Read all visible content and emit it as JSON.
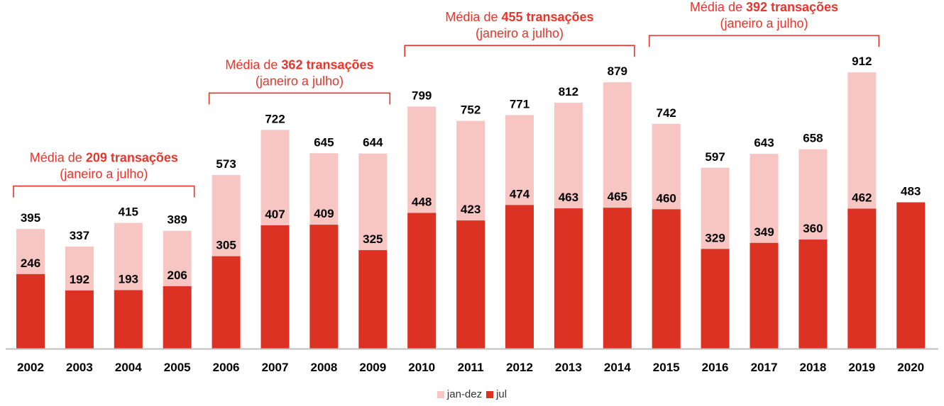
{
  "colors": {
    "jan_dez": "#f7c5c2",
    "jul": "#dc3224",
    "accent": "#e8352b",
    "axis": "#bfbfbf"
  },
  "chart_data": {
    "type": "bar",
    "stacked": "overlay",
    "categories": [
      "2002",
      "2003",
      "2004",
      "2005",
      "2006",
      "2007",
      "2008",
      "2009",
      "2010",
      "2011",
      "2012",
      "2013",
      "2014",
      "2015",
      "2016",
      "2017",
      "2018",
      "2019",
      "2020"
    ],
    "series": [
      {
        "name": "jan-dez",
        "values": [
          395,
          337,
          415,
          389,
          573,
          722,
          645,
          644,
          799,
          752,
          771,
          812,
          879,
          742,
          597,
          643,
          658,
          912,
          null
        ]
      },
      {
        "name": "jul",
        "values": [
          246,
          192,
          193,
          206,
          305,
          407,
          409,
          325,
          448,
          423,
          474,
          463,
          465,
          460,
          329,
          349,
          360,
          462,
          483
        ]
      }
    ],
    "ylim": [
      0,
      960
    ],
    "grid": false,
    "legend": "bottom-center",
    "annotations": [
      {
        "prefix": "Média de ",
        "bold": "209 transações",
        "sub": "(janeiro a julho)",
        "from": "2002",
        "to": "2005"
      },
      {
        "prefix": "Média de ",
        "bold": "362 transações",
        "sub": "(janeiro a julho)",
        "from": "2006",
        "to": "2009"
      },
      {
        "prefix": "Média de ",
        "bold": "455 transações",
        "sub": "(janeiro a julho)",
        "from": "2010",
        "to": "2014"
      },
      {
        "prefix": "Média de ",
        "bold": "392 transações",
        "sub": "(janeiro a julho)",
        "from": "2015",
        "to": "2019"
      }
    ]
  }
}
